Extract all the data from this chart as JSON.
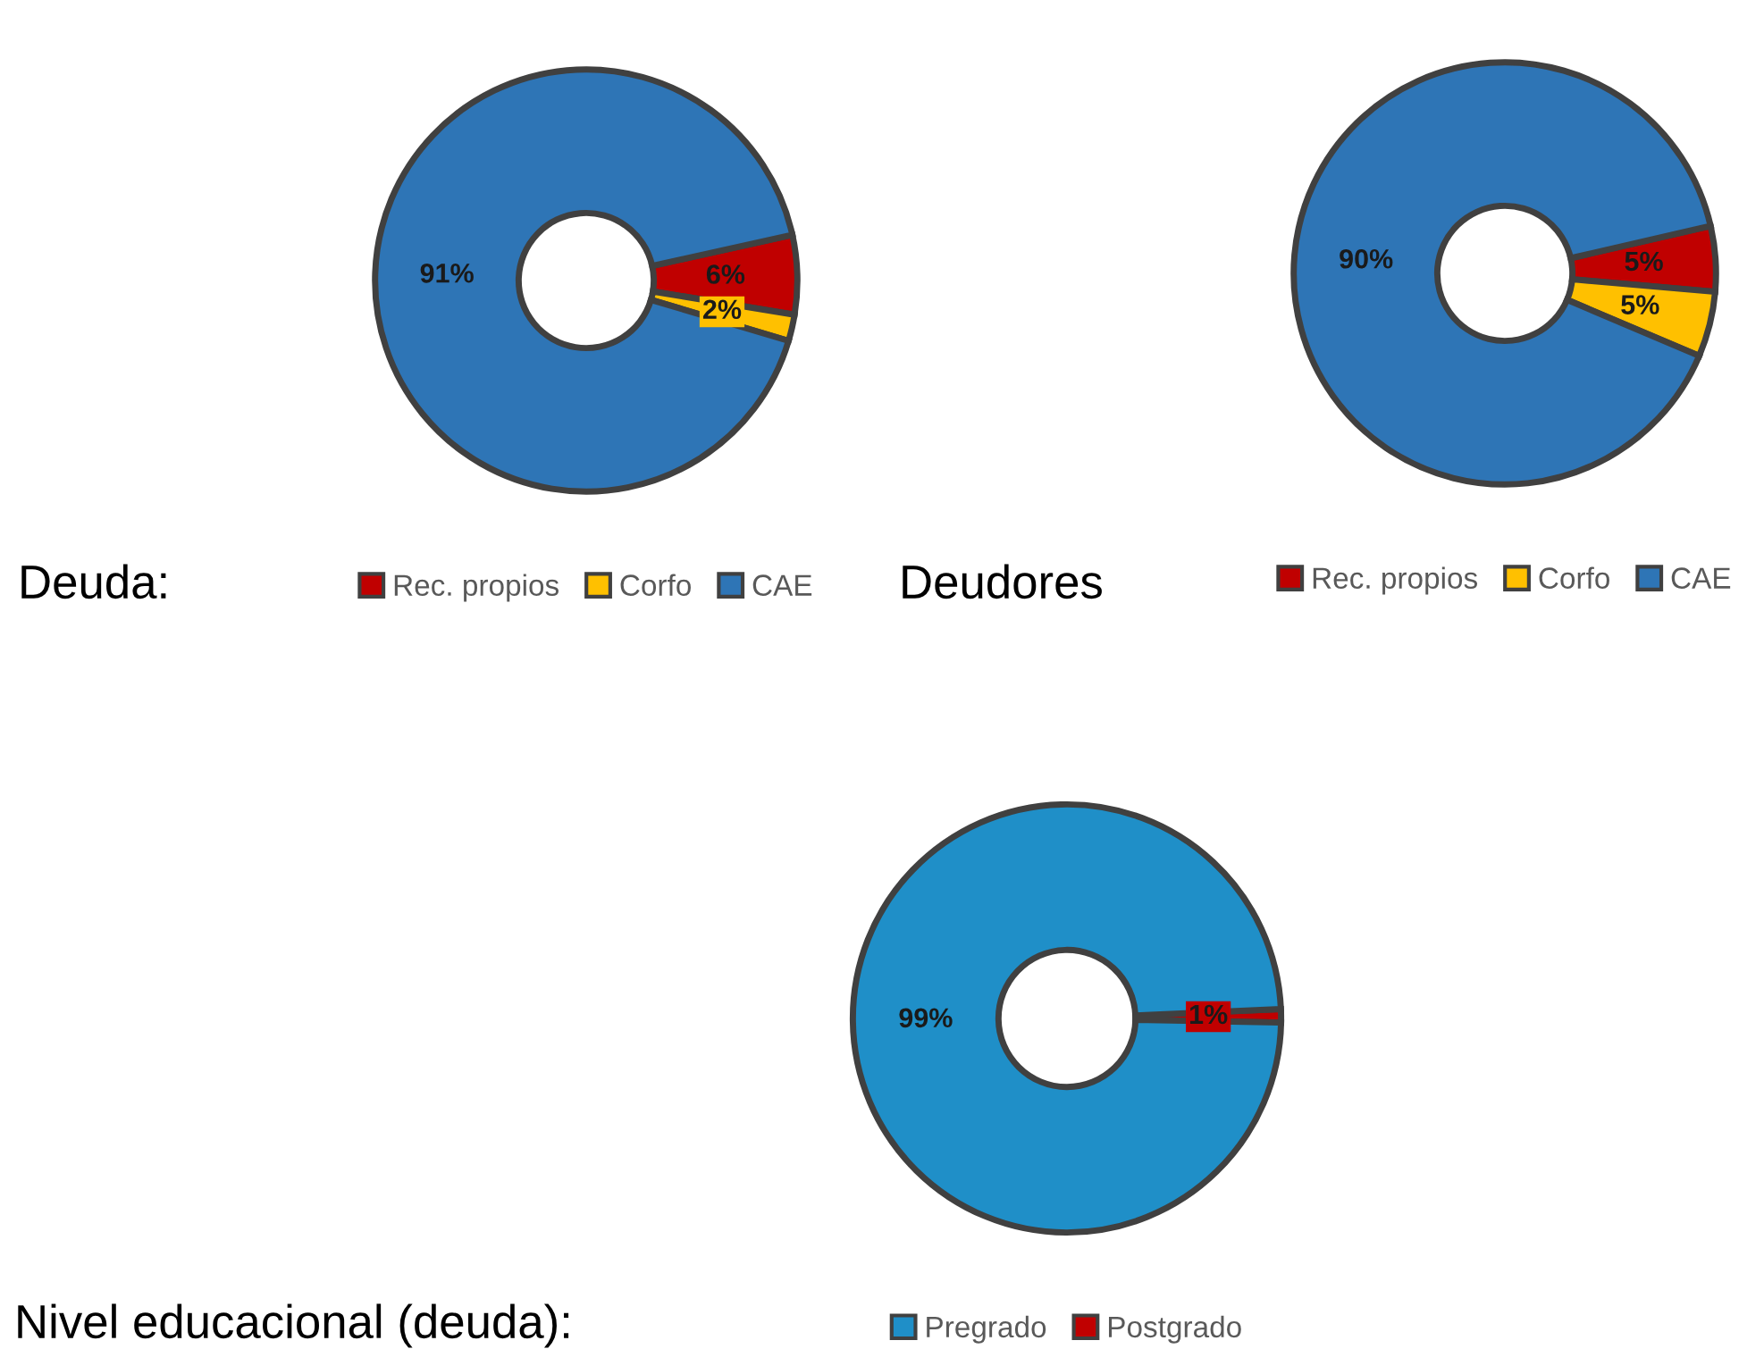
{
  "chart_data": [
    {
      "type": "donut",
      "title": "Deuda:",
      "categories": [
        "Rec. propios",
        "Corfo",
        "CAE"
      ],
      "values": [
        6,
        2,
        91
      ],
      "colors": [
        "#c00000",
        "#ffc000",
        "#2e75b6"
      ],
      "value_labels": [
        "6%",
        "2%",
        "91%"
      ],
      "legend": "bottom"
    },
    {
      "type": "donut",
      "title": "Deudores",
      "categories": [
        "Rec. propios",
        "Corfo",
        "CAE"
      ],
      "values": [
        5,
        5,
        90
      ],
      "colors": [
        "#c00000",
        "#ffc000",
        "#2e75b6"
      ],
      "value_labels": [
        "5%",
        "5%",
        "90%"
      ],
      "legend": "bottom"
    },
    {
      "type": "donut",
      "title": "Nivel educacional (deuda):",
      "categories": [
        "Postgrado",
        "Pregrado"
      ],
      "values": [
        1,
        99
      ],
      "colors": [
        "#c00000",
        "#1f8fc8"
      ],
      "value_labels": [
        "1%",
        "99%"
      ],
      "legend": "bottom"
    }
  ]
}
